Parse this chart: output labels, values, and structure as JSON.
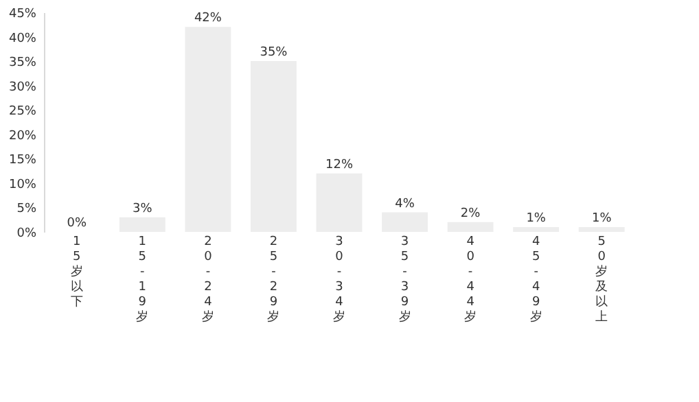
{
  "chart_data": {
    "type": "bar",
    "categories": [
      "15岁以下",
      "15-19岁",
      "20-24岁",
      "25-29岁",
      "30-34岁",
      "35-39岁",
      "40-44岁",
      "45-49岁",
      "50岁及以上"
    ],
    "values": [
      0,
      3,
      42,
      35,
      12,
      4,
      2,
      1,
      1
    ],
    "value_labels": [
      "0%",
      "3%",
      "42%",
      "35%",
      "12%",
      "4%",
      "2%",
      "1%",
      "1%"
    ],
    "color": "#ededed",
    "ylim": [
      0,
      45
    ],
    "yticks": [
      {
        "value": 0,
        "label": "0%"
      },
      {
        "value": 5,
        "label": "5%"
      },
      {
        "value": 10,
        "label": "10%"
      },
      {
        "value": 15,
        "label": "15%"
      },
      {
        "value": 20,
        "label": "20%"
      },
      {
        "value": 25,
        "label": "25%"
      },
      {
        "value": 30,
        "label": "30%"
      },
      {
        "value": 35,
        "label": "35%"
      },
      {
        "value": 40,
        "label": "40%"
      },
      {
        "value": 45,
        "label": "45%"
      }
    ],
    "grid": false
  }
}
